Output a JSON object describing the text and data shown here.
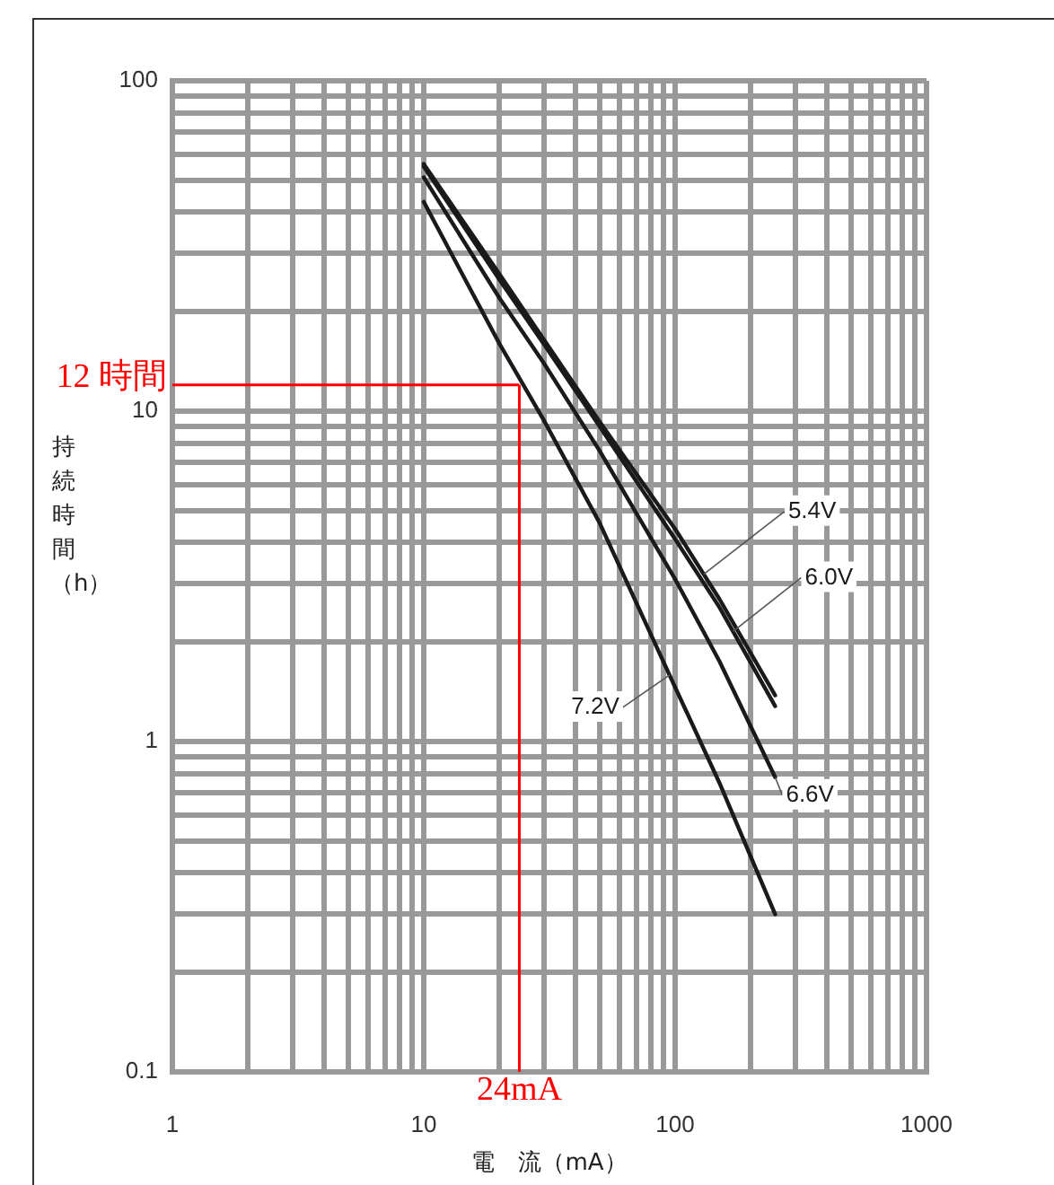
{
  "chart_data": {
    "type": "line",
    "xlabel": "電　流（mA）",
    "ylabel": "持続時間（h）",
    "log": "xy",
    "grid": true,
    "legend": false,
    "marker": "none",
    "line_style": "solid",
    "xlim": [
      1,
      1000
    ],
    "ylim": [
      0.1,
      100
    ],
    "xticks": [
      1,
      {
        "value": 2,
        "label": null
      },
      {
        "value": 3,
        "label": null
      },
      {
        "value": 4,
        "label": null
      },
      {
        "value": 5,
        "label": null
      },
      {
        "value": 6,
        "label": null
      },
      {
        "value": 7,
        "label": null
      },
      {
        "value": 8,
        "label": null
      },
      {
        "value": 9,
        "label": null
      },
      10,
      {
        "value": 20,
        "label": null
      },
      {
        "value": 30,
        "label": null
      },
      {
        "value": 40,
        "label": null
      },
      {
        "value": 50,
        "label": null
      },
      {
        "value": 60,
        "label": null
      },
      {
        "value": 70,
        "label": null
      },
      {
        "value": 80,
        "label": null
      },
      {
        "value": 90,
        "label": null
      },
      100,
      {
        "value": 200,
        "label": null
      },
      {
        "value": 300,
        "label": null
      },
      {
        "value": 400,
        "label": null
      },
      {
        "value": 500,
        "label": null
      },
      {
        "value": 600,
        "label": null
      },
      {
        "value": 700,
        "label": null
      },
      {
        "value": 800,
        "label": null
      },
      {
        "value": 900,
        "label": null
      },
      1000
    ],
    "yticks": [
      0.1,
      {
        "value": 0.2,
        "label": null
      },
      {
        "value": 0.3,
        "label": null
      },
      {
        "value": 0.4,
        "label": null
      },
      {
        "value": 0.5,
        "label": null
      },
      {
        "value": 0.6,
        "label": null
      },
      {
        "value": 0.7,
        "label": null
      },
      {
        "value": 0.8,
        "label": null
      },
      {
        "value": 0.9,
        "label": null
      },
      1,
      {
        "value": 2,
        "label": null
      },
      {
        "value": 3,
        "label": null
      },
      {
        "value": 4,
        "label": null
      },
      {
        "value": 5,
        "label": null
      },
      {
        "value": 6,
        "label": null
      },
      {
        "value": 7,
        "label": null
      },
      {
        "value": 8,
        "label": null
      },
      {
        "value": 9,
        "label": null
      },
      10,
      {
        "value": 20,
        "label": null
      },
      {
        "value": 30,
        "label": null
      },
      {
        "value": 40,
        "label": null
      },
      {
        "value": 50,
        "label": null
      },
      {
        "value": 60,
        "label": null
      },
      {
        "value": 70,
        "label": null
      },
      {
        "value": 80,
        "label": null
      },
      {
        "value": 90,
        "label": null
      },
      100
    ],
    "x": [
      10,
      20,
      30,
      50,
      100,
      150,
      250
    ],
    "series": [
      {
        "name": "5.4V",
        "color": "#1a1a1a",
        "values": [
          56,
          26,
          16.5,
          9.3,
          4.4,
          2.7,
          1.38
        ]
      },
      {
        "name": "6.0V",
        "color": "#1a1a1a",
        "values": [
          55,
          25,
          16,
          9,
          4.1,
          2.55,
          1.28
        ]
      },
      {
        "name": "6.6V",
        "color": "#1a1a1a",
        "values": [
          51,
          22,
          14,
          7.6,
          3.1,
          1.75,
          0.78
        ]
      },
      {
        "name": "7.2V",
        "color": "#1a1a1a",
        "values": [
          43,
          16,
          9.4,
          4.6,
          1.46,
          0.75,
          0.3
        ]
      }
    ],
    "ref_lines": [
      {
        "axis": "y",
        "value": 12,
        "label": "12 時間",
        "color": "#ff0000"
      },
      {
        "axis": "x",
        "value": 24,
        "label": "24mA",
        "color": "#ff0000"
      }
    ]
  }
}
